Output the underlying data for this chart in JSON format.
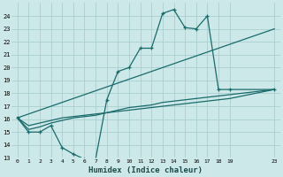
{
  "xlabel": "Humidex (Indice chaleur)",
  "background_color": "#cde8e8",
  "grid_color": "#aacfcf",
  "line_color": "#1a6b6b",
  "xlim": [
    -0.5,
    23.5
  ],
  "ylim": [
    13,
    25
  ],
  "xticks": [
    0,
    1,
    2,
    3,
    4,
    5,
    6,
    7,
    8,
    9,
    10,
    11,
    12,
    13,
    14,
    15,
    16,
    17,
    18,
    19,
    23
  ],
  "yticks": [
    13,
    14,
    15,
    16,
    17,
    18,
    19,
    20,
    21,
    22,
    23,
    24
  ],
  "line1_x": [
    0,
    1,
    2,
    3,
    4,
    5,
    6,
    7,
    8,
    9,
    10,
    11,
    12,
    13,
    14,
    15,
    16,
    17,
    18,
    19,
    23
  ],
  "line1_y": [
    16.1,
    15.0,
    15.0,
    15.5,
    13.8,
    13.3,
    12.9,
    12.9,
    17.5,
    19.7,
    20.0,
    21.5,
    21.5,
    24.2,
    24.5,
    23.1,
    23.0,
    24.0,
    18.3,
    18.3,
    18.3
  ],
  "line2_x": [
    0,
    23
  ],
  "line2_y": [
    16.1,
    23.0
  ],
  "line3_x": [
    0,
    1,
    2,
    3,
    4,
    5,
    6,
    7,
    8,
    9,
    10,
    11,
    12,
    13,
    14,
    15,
    16,
    17,
    18,
    19,
    23
  ],
  "line3_y": [
    16.1,
    15.5,
    15.7,
    15.9,
    16.1,
    16.2,
    16.3,
    16.4,
    16.5,
    16.6,
    16.7,
    16.8,
    16.9,
    17.0,
    17.1,
    17.2,
    17.3,
    17.4,
    17.5,
    17.6,
    18.3
  ],
  "line4_x": [
    0,
    1,
    2,
    3,
    4,
    5,
    6,
    7,
    8,
    9,
    10,
    11,
    12,
    13,
    14,
    15,
    16,
    17,
    18,
    19,
    23
  ],
  "line4_y": [
    16.1,
    15.2,
    15.4,
    15.7,
    15.9,
    16.1,
    16.2,
    16.3,
    16.5,
    16.7,
    16.9,
    17.0,
    17.1,
    17.3,
    17.4,
    17.5,
    17.6,
    17.7,
    17.8,
    17.9,
    18.3
  ]
}
